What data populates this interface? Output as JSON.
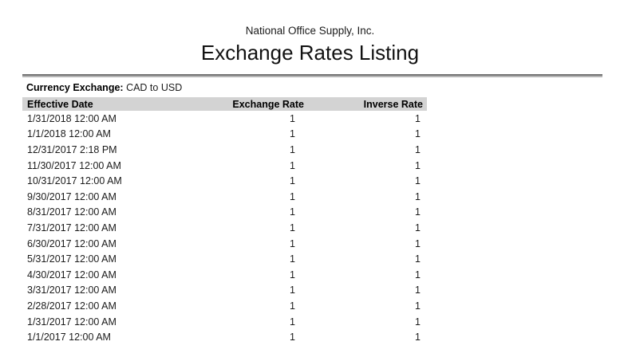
{
  "report": {
    "company_name": "National Office Supply, Inc.",
    "title": "Exchange Rates Listing",
    "filter_label": "Currency Exchange:",
    "filter_value": "CAD to USD"
  },
  "table": {
    "columns": [
      {
        "key": "effective_date",
        "label": "Effective Date"
      },
      {
        "key": "exchange_rate",
        "label": "Exchange Rate"
      },
      {
        "key": "inverse_rate",
        "label": "Inverse Rate"
      }
    ],
    "rows": [
      [
        "1/31/2018 12:00 AM",
        "1",
        "1"
      ],
      [
        "1/1/2018 12:00 AM",
        "1",
        "1"
      ],
      [
        "12/31/2017 2:18 PM",
        "1",
        "1"
      ],
      [
        "11/30/2017 12:00 AM",
        "1",
        "1"
      ],
      [
        "10/31/2017 12:00 AM",
        "1",
        "1"
      ],
      [
        "9/30/2017 12:00 AM",
        "1",
        "1"
      ],
      [
        "8/31/2017 12:00 AM",
        "1",
        "1"
      ],
      [
        "7/31/2017 12:00 AM",
        "1",
        "1"
      ],
      [
        "6/30/2017 12:00 AM",
        "1",
        "1"
      ],
      [
        "5/31/2017 12:00 AM",
        "1",
        "1"
      ],
      [
        "4/30/2017 12:00 AM",
        "1",
        "1"
      ],
      [
        "3/31/2017 12:00 AM",
        "1",
        "1"
      ],
      [
        "2/28/2017 12:00 AM",
        "1",
        "1"
      ],
      [
        "1/31/2017 12:00 AM",
        "1",
        "1"
      ],
      [
        "1/1/2017 12:00 AM",
        "1",
        "1"
      ]
    ]
  },
  "colors": {
    "header_bg": "#d3d3d3",
    "rule_top": "#757575",
    "rule_bottom": "#b5b5b5",
    "text": "#1c1c1c"
  }
}
